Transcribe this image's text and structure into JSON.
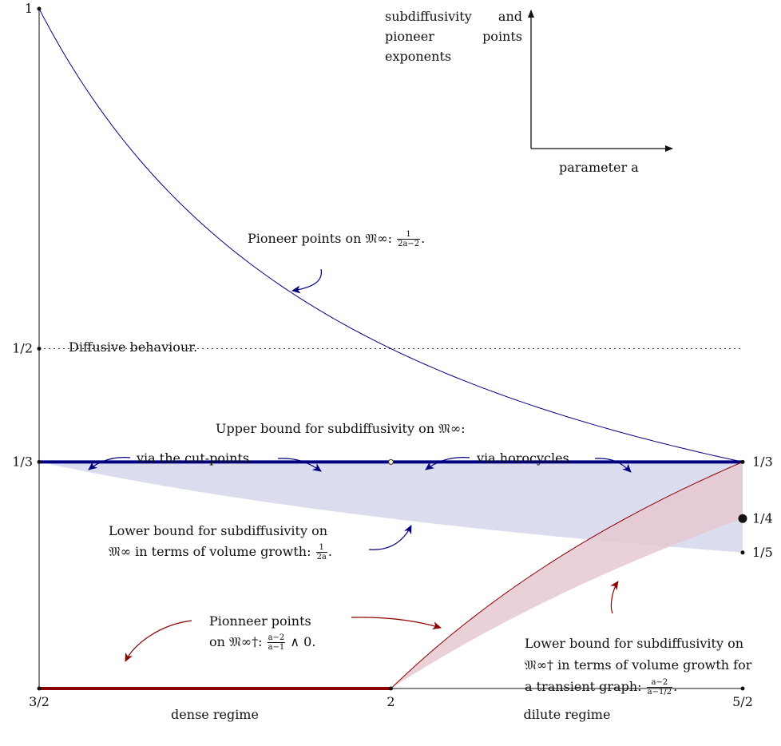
{
  "chart_data": {
    "type": "line",
    "title": "",
    "corner_axes": {
      "ylabel": "subdiffusivity and pioneer points exponents",
      "xlabel": "parameter a"
    },
    "xlim": [
      1.5,
      2.5
    ],
    "ylim": [
      0,
      1
    ],
    "x_ticks": [
      {
        "value": 1.5,
        "label": "3/2"
      },
      {
        "value": 2,
        "label": "2"
      },
      {
        "value": 2.5,
        "label": "5/2"
      }
    ],
    "y_ticks_left": [
      {
        "value": 1,
        "label": "1"
      },
      {
        "value": 0.5,
        "label": "1/2"
      },
      {
        "value": 0.3333,
        "label": "1/3"
      }
    ],
    "y_ticks_right": [
      {
        "value": 0.3333,
        "label": "1/3"
      },
      {
        "value": 0.25,
        "label": "1/4"
      },
      {
        "value": 0.2,
        "label": "1/5"
      }
    ],
    "regimes": [
      {
        "label": "dense regime",
        "x_center": 1.75
      },
      {
        "label": "dilute regime",
        "x_center": 2.25
      }
    ],
    "reference_line": {
      "y": 0.5,
      "style": "dotted",
      "label": "Diffusive behaviour."
    },
    "series": [
      {
        "formula": "1/(2a-2)",
        "color": "#000080",
        "x": [
          1.5,
          1.6,
          1.7,
          1.8,
          1.9,
          2.0,
          2.1,
          2.2,
          2.3,
          2.4,
          2.5
        ],
        "y": [
          1.0,
          0.8333,
          0.7143,
          0.625,
          0.5556,
          0.5,
          0.4545,
          0.4167,
          0.3846,
          0.3571,
          0.3333
        ]
      },
      {
        "formula": "1/3",
        "color": "#000080",
        "thick": true,
        "x": [
          1.5,
          2.5
        ],
        "y": [
          0.3333,
          0.3333
        ]
      },
      {
        "formula": "1/(2a)",
        "color": "#000080",
        "fill_to": "1/3",
        "fill_color": "#dcdcef",
        "x": [
          1.5,
          1.75,
          2.0,
          2.25,
          2.5
        ],
        "y": [
          0.3333,
          0.2857,
          0.25,
          0.2222,
          0.2
        ]
      },
      {
        "formula": "(a-2)/(a-1)",
        "color": "#8b0000",
        "x": [
          2.0,
          2.05,
          2.1,
          2.15,
          2.2,
          2.25,
          2.3,
          2.35,
          2.4,
          2.45,
          2.5
        ],
        "y": [
          0.0,
          0.0476,
          0.0909,
          0.1304,
          0.1667,
          0.2,
          0.2308,
          0.2593,
          0.2857,
          0.3103,
          0.3333
        ]
      },
      {
        "formula": "0",
        "color": "#8b0000",
        "thick": true,
        "x": [
          1.5,
          2.0
        ],
        "y": [
          0,
          0
        ]
      },
      {
        "formula": "(a-2)/(a-1/2)",
        "color": "#8b0000",
        "fill_to": "(a-2)/(a-1)",
        "fill_color": "#e6c8d0",
        "x": [
          2.0,
          2.1,
          2.2,
          2.3,
          2.4,
          2.5
        ],
        "y": [
          0.0,
          0.0625,
          0.1176,
          0.1667,
          0.2105,
          0.25
        ]
      }
    ],
    "marked_points": [
      {
        "x": 2.0,
        "y": 0.3333,
        "style": "open"
      },
      {
        "x": 2.5,
        "y": 0.25,
        "style": "large"
      },
      {
        "x": 2.5,
        "y": 0.2,
        "style": "small"
      }
    ]
  },
  "annotations": {
    "pioneer": {
      "text": "Pioneer points on 𝔐∞: ",
      "num": "1",
      "den": "2a−2",
      "after": "."
    },
    "upper": {
      "text": "Upper bound for subdiffusivity on 𝔐∞:"
    },
    "cut_points": {
      "text": "via the cut-points."
    },
    "horocycles": {
      "text": "via horocycles."
    },
    "lower1": {
      "line1": "Lower bound for subdiffusivity on",
      "line2": "𝔐∞ in terms of volume growth: ",
      "num": "1",
      "den": "2a",
      "after": "."
    },
    "pionneer2": {
      "line1": "Pionneer points",
      "line2": "on 𝔐∞†: ",
      "num": "a−2",
      "den": "a−1",
      "after": " ∧ 0."
    },
    "lower2": {
      "line1": "Lower bound for subdiffusivity on",
      "line2": "𝔐∞† in terms of volume growth for",
      "line3": "a transient graph: ",
      "num": "a−2",
      "den": "a−1/2",
      "after": "."
    }
  }
}
